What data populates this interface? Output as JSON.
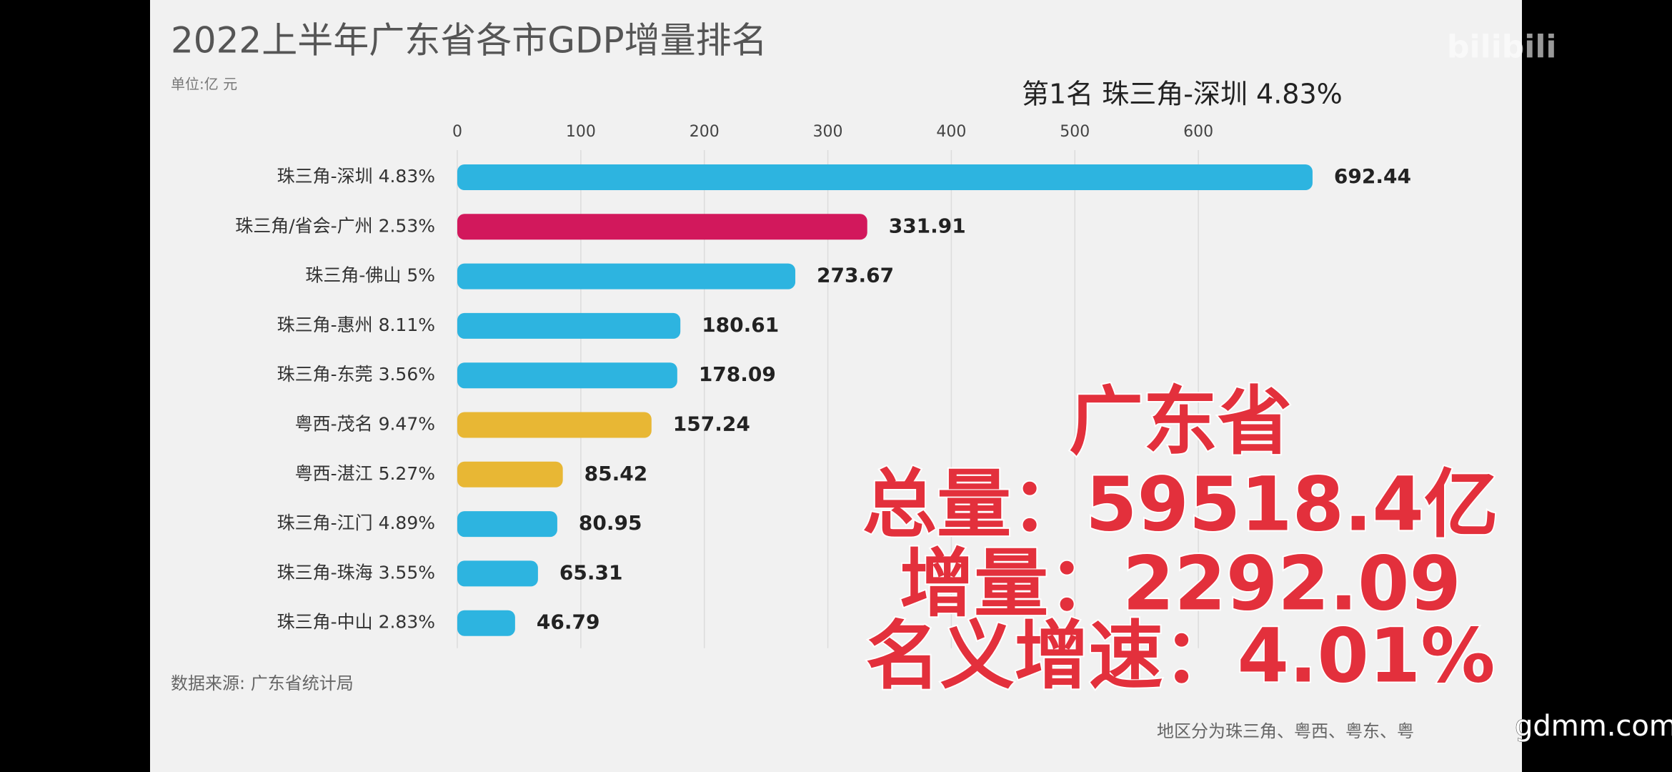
{
  "chart_data": {
    "type": "bar",
    "orientation": "horizontal",
    "title": "2022上半年广东省各市GDP增量排名",
    "subtitle": "单位:亿 元",
    "highlight": "第1名 珠三角-深圳 4.83%",
    "categories": [
      "珠三角-深圳 4.83%",
      "珠三角/省会-广州 2.53%",
      "珠三角-佛山 5%",
      "珠三角-惠州 8.11%",
      "珠三角-东莞 3.56%",
      "粤西-茂名 9.47%",
      "粤西-湛江 5.27%",
      "珠三角-江门 4.89%",
      "珠三角-珠海 3.55%",
      "珠三角-中山 2.83%"
    ],
    "values": [
      692.44,
      331.91,
      273.67,
      180.61,
      178.09,
      157.24,
      85.42,
      80.95,
      65.31,
      46.79
    ],
    "colors": [
      "#2db4e0",
      "#d2185c",
      "#2db4e0",
      "#2db4e0",
      "#2db4e0",
      "#e8b734",
      "#e8b734",
      "#2db4e0",
      "#2db4e0",
      "#2db4e0"
    ],
    "xlim": [
      0,
      700
    ],
    "xticks": [
      0,
      100,
      200,
      300,
      400,
      500,
      600
    ],
    "grid": true,
    "source": "数据来源: 广东省统计局",
    "note": "地区分为珠三角、粤西、粤东、粤",
    "annotations": [
      "广东省",
      "总量：59518.4亿",
      "增量：2292.09",
      "名义增速：4.01%"
    ]
  },
  "watermarks": [
    "bilibili",
    "gdmm.com"
  ]
}
